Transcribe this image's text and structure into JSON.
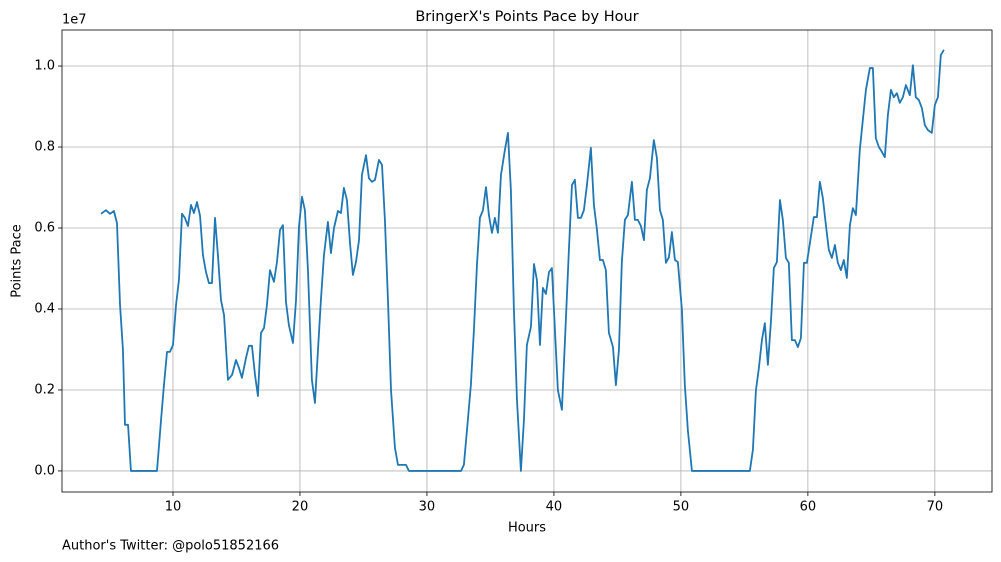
{
  "chart_data": {
    "type": "line",
    "title": "BringerX's Points Pace by Hour",
    "xlabel": "Hours",
    "ylabel": "Points Pace",
    "y_offset_label": "1e7",
    "footer": "Author's Twitter: @polo51852166",
    "color": "#1f77b4",
    "grid": true,
    "xlim": [
      1.26,
      74.5
    ],
    "ylim": [
      -520000,
      10890000
    ],
    "xticks": [
      10,
      20,
      30,
      40,
      50,
      60,
      70
    ],
    "yticks": [
      {
        "value": 0,
        "label": "0.0"
      },
      {
        "value": 2000000,
        "label": "0.2"
      },
      {
        "value": 4000000,
        "label": "0.4"
      },
      {
        "value": 6000000,
        "label": "0.6"
      },
      {
        "value": 8000000,
        "label": "0.8"
      },
      {
        "value": 10000000,
        "label": "1.0"
      }
    ],
    "x": [
      4.33,
      4.72,
      5.04,
      5.35,
      5.59,
      5.83,
      6.06,
      6.22,
      6.46,
      6.69,
      8.74,
      9.06,
      9.29,
      9.53,
      9.76,
      10.0,
      10.24,
      10.47,
      10.71,
      10.94,
      11.18,
      11.42,
      11.65,
      11.89,
      12.13,
      12.36,
      12.6,
      12.83,
      13.07,
      13.31,
      13.54,
      13.78,
      14.02,
      14.33,
      14.65,
      14.96,
      15.2,
      15.43,
      15.75,
      15.98,
      16.22,
      16.46,
      16.69,
      16.93,
      17.17,
      17.4,
      17.64,
      17.95,
      18.19,
      18.43,
      18.66,
      18.9,
      19.13,
      19.45,
      19.69,
      19.92,
      20.16,
      20.39,
      20.63,
      20.94,
      21.18,
      21.42,
      21.65,
      21.89,
      22.2,
      22.44,
      22.68,
      22.99,
      23.23,
      23.46,
      23.7,
      23.94,
      24.17,
      24.41,
      24.65,
      24.88,
      25.2,
      25.43,
      25.67,
      25.91,
      26.22,
      26.46,
      26.69,
      26.93,
      27.17,
      27.48,
      27.72,
      28.03,
      28.35,
      28.58,
      32.68,
      32.91,
      33.15,
      33.46,
      33.7,
      33.94,
      34.17,
      34.41,
      34.65,
      34.88,
      35.12,
      35.35,
      35.59,
      35.83,
      36.14,
      36.38,
      36.61,
      36.85,
      37.09,
      37.4,
      37.64,
      37.87,
      38.19,
      38.43,
      38.66,
      38.9,
      39.13,
      39.37,
      39.61,
      39.84,
      40.08,
      40.31,
      40.63,
      40.94,
      41.18,
      41.42,
      41.65,
      41.89,
      42.13,
      42.36,
      42.6,
      42.91,
      43.15,
      43.39,
      43.62,
      43.86,
      44.09,
      44.33,
      44.65,
      44.88,
      45.12,
      45.35,
      45.59,
      45.83,
      46.14,
      46.38,
      46.61,
      46.85,
      47.09,
      47.32,
      47.56,
      47.87,
      48.11,
      48.35,
      48.58,
      48.82,
      49.06,
      49.29,
      49.53,
      49.76,
      50.08,
      50.31,
      50.55,
      50.87,
      55.43,
      55.67,
      55.91,
      56.14,
      56.38,
      56.61,
      56.85,
      57.09,
      57.32,
      57.56,
      57.8,
      58.03,
      58.27,
      58.5,
      58.74,
      58.98,
      59.21,
      59.45,
      59.69,
      59.92,
      60.16,
      60.47,
      60.71,
      60.94,
      61.18,
      61.42,
      61.65,
      61.89,
      62.13,
      62.36,
      62.6,
      62.83,
      63.07,
      63.31,
      63.54,
      63.78,
      64.09,
      64.33,
      64.57,
      64.88,
      65.12,
      65.35,
      65.59,
      65.83,
      66.06,
      66.3,
      66.54,
      66.77,
      67.01,
      67.24,
      67.48,
      67.72,
      68.03,
      68.27,
      68.5,
      68.74,
      68.98,
      69.21,
      69.45,
      69.76,
      70.0,
      70.24,
      70.47,
      70.71
    ],
    "values": [
      6350000,
      6440000,
      6350000,
      6420000,
      6120000,
      4100000,
      2990000,
      1140000,
      1140000,
      0,
      0,
      1260000,
      2120000,
      2940000,
      2940000,
      3110000,
      4100000,
      4720000,
      6350000,
      6250000,
      6050000,
      6570000,
      6370000,
      6640000,
      6300000,
      5330000,
      4910000,
      4640000,
      4640000,
      6250000,
      5330000,
      4220000,
      3850000,
      2250000,
      2370000,
      2740000,
      2540000,
      2300000,
      2790000,
      3090000,
      3090000,
      2370000,
      1850000,
      3410000,
      3530000,
      4100000,
      4960000,
      4670000,
      5160000,
      5950000,
      6070000,
      4170000,
      3600000,
      3160000,
      4220000,
      6020000,
      6770000,
      6440000,
      4960000,
      2250000,
      1680000,
      2990000,
      4220000,
      5330000,
      6150000,
      5380000,
      6000000,
      6420000,
      6370000,
      6990000,
      6690000,
      5630000,
      4840000,
      5160000,
      5700000,
      7310000,
      7800000,
      7230000,
      7140000,
      7190000,
      7680000,
      7560000,
      6200000,
      4220000,
      2000000,
      570000,
      150000,
      150000,
      150000,
      0,
      0,
      150000,
      1000000,
      2120000,
      3480000,
      5090000,
      6250000,
      6440000,
      7010000,
      6320000,
      5880000,
      6250000,
      5880000,
      7310000,
      7930000,
      8350000,
      6940000,
      3980000,
      1750000,
      0,
      1260000,
      3110000,
      3560000,
      5110000,
      4720000,
      3110000,
      4520000,
      4370000,
      4910000,
      5010000,
      3480000,
      2000000,
      1510000,
      3730000,
      5460000,
      7060000,
      7190000,
      6250000,
      6250000,
      6440000,
      7060000,
      7980000,
      6570000,
      5950000,
      5210000,
      5210000,
      4960000,
      3410000,
      3060000,
      2120000,
      2990000,
      5160000,
      6200000,
      6320000,
      7140000,
      6200000,
      6200000,
      6050000,
      5700000,
      6940000,
      7230000,
      8170000,
      7730000,
      6440000,
      6200000,
      5140000,
      5280000,
      5900000,
      5210000,
      5160000,
      3980000,
      2120000,
      1000000,
      0,
      0,
      520000,
      2000000,
      2540000,
      3230000,
      3650000,
      2620000,
      3680000,
      5010000,
      5160000,
      6690000,
      6200000,
      5260000,
      5140000,
      3230000,
      3230000,
      3060000,
      3280000,
      5140000,
      5140000,
      5630000,
      6270000,
      6270000,
      7140000,
      6740000,
      6070000,
      5460000,
      5260000,
      5580000,
      5140000,
      4960000,
      5210000,
      4770000,
      6070000,
      6490000,
      6320000,
      7930000,
      8670000,
      9410000,
      9950000,
      9950000,
      8220000,
      8000000,
      7880000,
      7750000,
      8790000,
      9410000,
      9230000,
      9330000,
      9090000,
      9230000,
      9530000,
      9280000,
      10020000,
      9230000,
      9160000,
      8960000,
      8540000,
      8420000,
      8350000,
      9040000,
      9230000,
      10270000,
      10400000
    ]
  }
}
